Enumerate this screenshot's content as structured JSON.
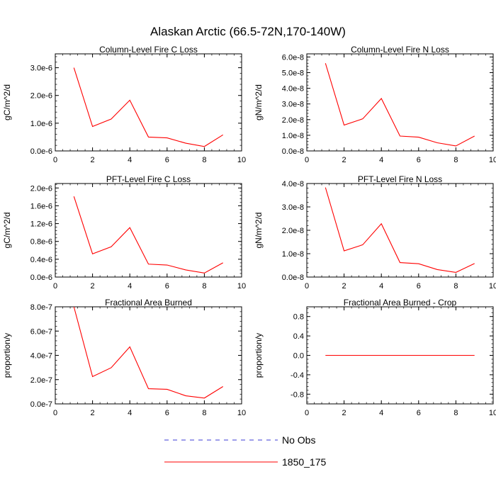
{
  "figure_title": "Alaskan Arctic (66.5-72N,170-140W)",
  "legend": {
    "entries": [
      {
        "label": "No Obs",
        "color": "#3b3bd6",
        "dash": "6,6"
      },
      {
        "label": "1850_175",
        "color": "#ff0000",
        "dash": ""
      }
    ]
  },
  "chart_data": [
    {
      "type": "line",
      "title": "Column-Level Fire C Loss",
      "xlabel": "",
      "ylabel": "gC/m^2/d",
      "xlim": [
        0,
        10
      ],
      "ylim": [
        0,
        3.5e-06
      ],
      "x_ticks": [
        "0",
        "2",
        "4",
        "6",
        "8",
        "10"
      ],
      "y_ticks": [
        "0.0e-6",
        "1.0e-6",
        "2.0e-6",
        "3.0e-6"
      ],
      "y_tick_values": [
        0,
        1e-06,
        2e-06,
        3e-06
      ],
      "series": [
        {
          "name": "1850_175",
          "color": "#ff0000",
          "x": [
            1,
            2,
            3,
            4,
            5,
            6,
            7,
            8,
            9
          ],
          "y": [
            3e-06,
            8.8e-07,
            1.15e-06,
            1.83e-06,
            5e-07,
            4.7e-07,
            2.8e-07,
            1.6e-07,
            5.8e-07
          ]
        }
      ]
    },
    {
      "type": "line",
      "title": "Column-Level Fire N Loss",
      "xlabel": "",
      "ylabel": "gN/m^2/d",
      "xlim": [
        0,
        10
      ],
      "ylim": [
        0,
        6.2e-08
      ],
      "x_ticks": [
        "0",
        "2",
        "4",
        "6",
        "8",
        "10"
      ],
      "y_ticks": [
        "0.0e-8",
        "1.0e-8",
        "2.0e-8",
        "3.0e-8",
        "4.0e-8",
        "5.0e-8",
        "6.0e-8"
      ],
      "y_tick_values": [
        0,
        1e-08,
        2e-08,
        3e-08,
        4e-08,
        5e-08,
        6e-08
      ],
      "series": [
        {
          "name": "1850_175",
          "color": "#ff0000",
          "x": [
            1,
            2,
            3,
            4,
            5,
            6,
            7,
            8,
            9
          ],
          "y": [
            5.6e-08,
            1.65e-08,
            2.05e-08,
            3.35e-08,
            9.5e-09,
            8.8e-09,
            5.2e-09,
            3.2e-09,
            9.5e-09
          ]
        }
      ]
    },
    {
      "type": "line",
      "title": "PFT-Level Fire C Loss",
      "xlabel": "",
      "ylabel": "gC/m^2/d",
      "xlim": [
        0,
        10
      ],
      "ylim": [
        0,
        2.1e-06
      ],
      "x_ticks": [
        "0",
        "2",
        "4",
        "6",
        "8",
        "10"
      ],
      "y_ticks": [
        "0.0e-6",
        "0.4e-6",
        "0.8e-6",
        "1.2e-6",
        "1.6e-6",
        "2.0e-6"
      ],
      "y_tick_values": [
        0,
        4e-07,
        8e-07,
        1.2e-06,
        1.6e-06,
        2e-06
      ],
      "series": [
        {
          "name": "1850_175",
          "color": "#ff0000",
          "x": [
            1,
            2,
            3,
            4,
            5,
            6,
            7,
            8,
            9
          ],
          "y": [
            1.81e-06,
            5.2e-07,
            6.8e-07,
            1.11e-06,
            2.9e-07,
            2.7e-07,
            1.6e-07,
            9e-08,
            3.2e-07
          ]
        }
      ]
    },
    {
      "type": "line",
      "title": "PFT-Level Fire N Loss",
      "xlabel": "",
      "ylabel": "gN/m^2/d",
      "xlim": [
        0,
        10
      ],
      "ylim": [
        0,
        4e-08
      ],
      "x_ticks": [
        "0",
        "2",
        "4",
        "6",
        "8",
        "10"
      ],
      "y_ticks": [
        "0.0e-8",
        "1.0e-8",
        "2.0e-8",
        "3.0e-8",
        "4.0e-8"
      ],
      "y_tick_values": [
        0,
        1e-08,
        2e-08,
        3e-08,
        4e-08
      ],
      "series": [
        {
          "name": "1850_175",
          "color": "#ff0000",
          "x": [
            1,
            2,
            3,
            4,
            5,
            6,
            7,
            8,
            9
          ],
          "y": [
            3.83e-08,
            1.12e-08,
            1.38e-08,
            2.28e-08,
            6.2e-09,
            5.7e-09,
            3.2e-09,
            2e-09,
            5.8e-09
          ]
        }
      ]
    },
    {
      "type": "line",
      "title": "Fractional Area Burned",
      "xlabel": "",
      "ylabel": "proportion/y",
      "xlim": [
        0,
        10
      ],
      "ylim": [
        0,
        8e-07
      ],
      "x_ticks": [
        "0",
        "2",
        "4",
        "6",
        "8",
        "10"
      ],
      "y_ticks": [
        "0.0e-7",
        "2.0e-7",
        "4.0e-7",
        "6.0e-7",
        "8.0e-7"
      ],
      "y_tick_values": [
        0,
        2e-07,
        4e-07,
        6e-07,
        8e-07
      ],
      "series": [
        {
          "name": "1850_175",
          "color": "#ff0000",
          "x": [
            1,
            2,
            3,
            4,
            5,
            6,
            7,
            8,
            9
          ],
          "y": [
            8e-07,
            2.25e-07,
            2.98e-07,
            4.7e-07,
            1.25e-07,
            1.2e-07,
            6.7e-08,
            4.8e-08,
            1.43e-07
          ]
        }
      ]
    },
    {
      "type": "line",
      "title": "Fractional Area Burned - Crop",
      "xlabel": "",
      "ylabel": "proportion/y",
      "xlim": [
        0,
        10
      ],
      "ylim": [
        -1.0,
        1.0
      ],
      "x_ticks": [
        "0",
        "2",
        "4",
        "6",
        "8",
        "10"
      ],
      "y_ticks": [
        "-0.8",
        "-0.4",
        "0.0",
        "0.4",
        "0.8"
      ],
      "y_tick_values": [
        -0.8,
        -0.4,
        0.0,
        0.4,
        0.8
      ],
      "series": [
        {
          "name": "1850_175",
          "color": "#ff0000",
          "x": [
            1,
            2,
            3,
            4,
            5,
            6,
            7,
            8,
            9
          ],
          "y": [
            0,
            0,
            0,
            0,
            0,
            0,
            0,
            0,
            0
          ]
        }
      ]
    }
  ]
}
